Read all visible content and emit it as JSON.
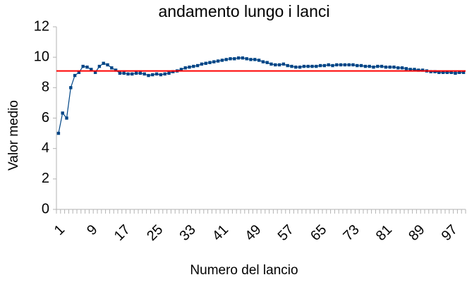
{
  "chart_data": {
    "type": "line",
    "title": "andamento lungo i lanci",
    "x_label": "Numero del lancio",
    "y_label": "Valor medio",
    "categories": [
      1,
      null,
      null,
      null,
      null,
      null,
      null,
      null,
      9,
      null,
      null,
      null,
      null,
      null,
      null,
      null,
      17,
      null,
      null,
      null,
      null,
      null,
      null,
      null,
      25,
      null,
      null,
      null,
      null,
      null,
      null,
      null,
      33,
      null,
      null,
      null,
      null,
      null,
      null,
      null,
      41,
      null,
      null,
      null,
      null,
      null,
      null,
      null,
      49,
      null,
      null,
      null,
      null,
      null,
      null,
      null,
      57,
      null,
      null,
      null,
      null,
      null,
      null,
      null,
      65,
      null,
      null,
      null,
      null,
      null,
      null,
      null,
      73,
      null,
      null,
      null,
      null,
      null,
      null,
      null,
      81,
      null,
      null,
      null,
      null,
      null,
      null,
      null,
      89,
      null,
      null,
      null,
      null,
      null,
      null,
      null,
      97,
      null,
      null,
      null
    ],
    "series": [
      {
        "name": "Valor medio",
        "color": "#004586",
        "values": [
          5.0,
          6.33,
          6.0,
          8.0,
          8.8,
          9.0,
          9.4,
          9.35,
          9.2,
          9.0,
          9.4,
          9.6,
          9.5,
          9.3,
          9.15,
          8.95,
          8.95,
          8.9,
          8.9,
          8.95,
          8.95,
          8.9,
          8.8,
          8.85,
          8.9,
          8.85,
          8.9,
          8.95,
          9.05,
          9.1,
          9.2,
          9.3,
          9.35,
          9.4,
          9.45,
          9.55,
          9.6,
          9.65,
          9.7,
          9.75,
          9.8,
          9.85,
          9.9,
          9.9,
          9.95,
          9.95,
          9.9,
          9.85,
          9.85,
          9.8,
          9.7,
          9.65,
          9.55,
          9.5,
          9.5,
          9.55,
          9.45,
          9.4,
          9.35,
          9.35,
          9.4,
          9.4,
          9.4,
          9.4,
          9.45,
          9.45,
          9.5,
          9.45,
          9.5,
          9.5,
          9.5,
          9.5,
          9.5,
          9.45,
          9.45,
          9.4,
          9.4,
          9.35,
          9.4,
          9.4,
          9.35,
          9.35,
          9.35,
          9.3,
          9.3,
          9.25,
          9.2,
          9.2,
          9.15,
          9.15,
          9.1,
          9.05,
          9.05,
          9.0,
          9.0,
          9.0,
          9.0,
          8.95,
          9.0,
          9.0
        ]
      }
    ],
    "reference_line": {
      "value": 9.1,
      "color": "#ff0000"
    },
    "ylim": [
      0,
      12
    ],
    "yticks": [
      0,
      2,
      4,
      6,
      8,
      10,
      12
    ],
    "grid": false
  }
}
